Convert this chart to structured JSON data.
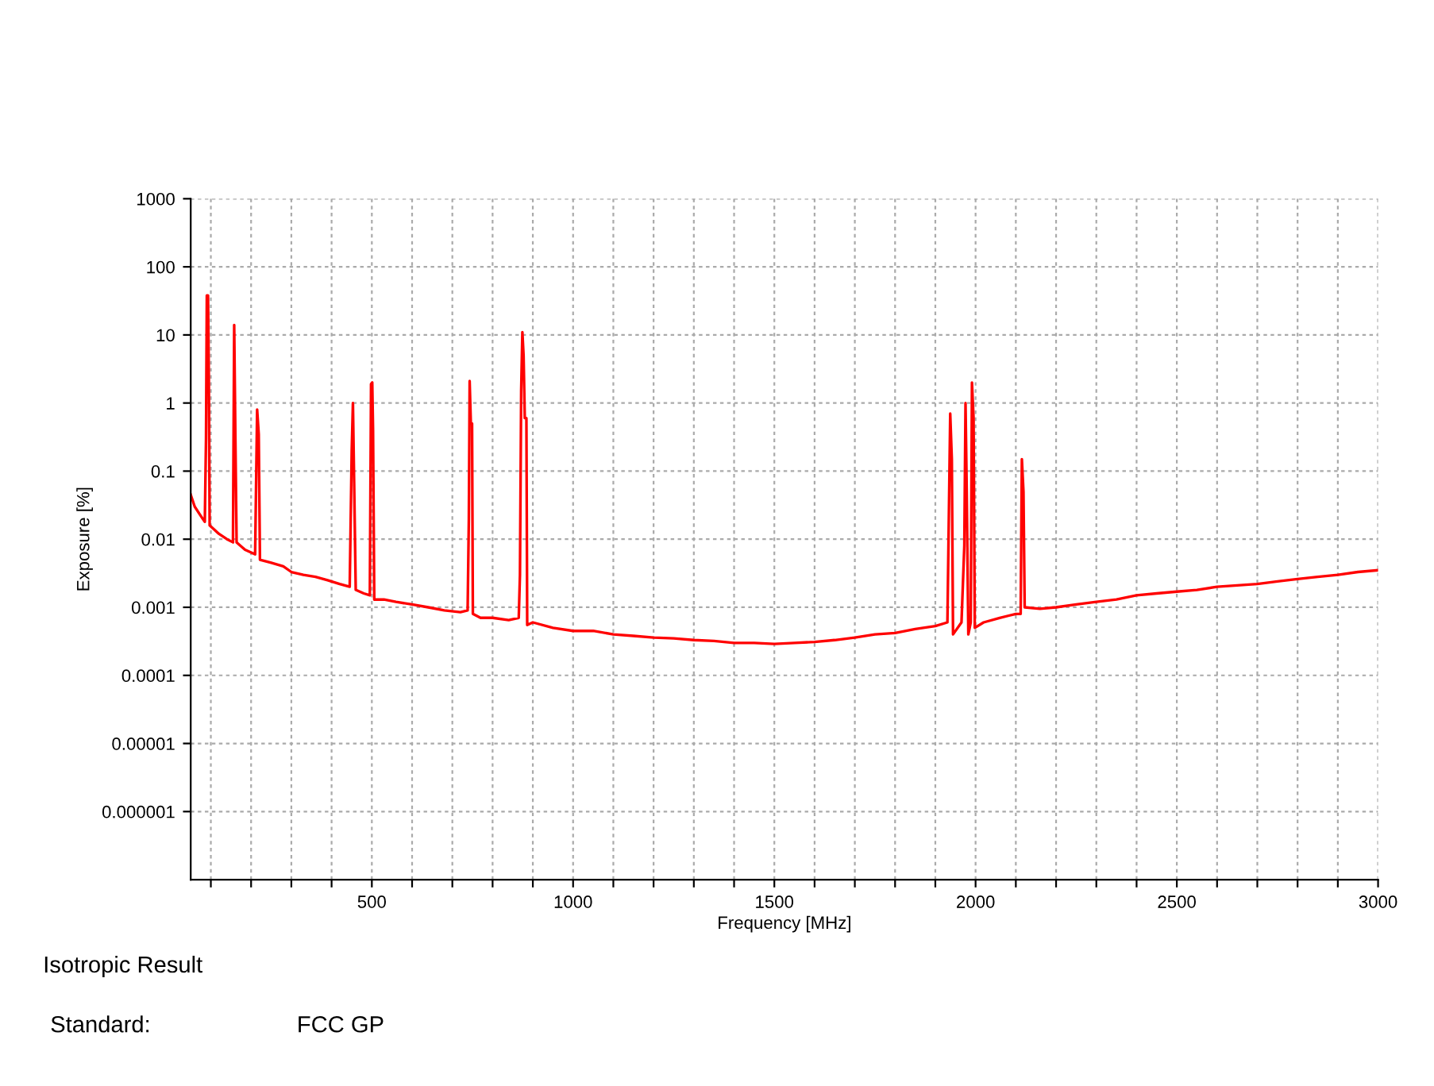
{
  "chart_data": {
    "type": "line",
    "xlabel": "Frequency [MHz]",
    "ylabel": "Exposure [%]",
    "annotations": [
      "Isotropic Result",
      "Standard:",
      "FCC GP"
    ],
    "log": "y",
    "grid": true,
    "marker": "none",
    "line_style": "solid",
    "xlim": [
      50,
      3000
    ],
    "ylim": [
      1e-07,
      1000
    ],
    "xticks": [
      {
        "value": 100,
        "label": null
      },
      {
        "value": 200,
        "label": null
      },
      {
        "value": 300,
        "label": null
      },
      {
        "value": 400,
        "label": null
      },
      500,
      {
        "value": 600,
        "label": null
      },
      {
        "value": 700,
        "label": null
      },
      {
        "value": 800,
        "label": null
      },
      {
        "value": 900,
        "label": null
      },
      1000,
      {
        "value": 1100,
        "label": null
      },
      {
        "value": 1200,
        "label": null
      },
      {
        "value": 1300,
        "label": null
      },
      {
        "value": 1400,
        "label": null
      },
      1500,
      {
        "value": 1600,
        "label": null
      },
      {
        "value": 1700,
        "label": null
      },
      {
        "value": 1800,
        "label": null
      },
      {
        "value": 1900,
        "label": null
      },
      2000,
      {
        "value": 2100,
        "label": null
      },
      {
        "value": 2200,
        "label": null
      },
      {
        "value": 2300,
        "label": null
      },
      {
        "value": 2400,
        "label": null
      },
      2500,
      {
        "value": 2600,
        "label": null
      },
      {
        "value": 2700,
        "label": null
      },
      {
        "value": 2800,
        "label": null
      },
      {
        "value": 2900,
        "label": null
      },
      3000
    ],
    "yticks": [
      {
        "value": 1e-06,
        "label": "0.000001"
      },
      {
        "value": 1e-05,
        "label": "0.00001"
      },
      {
        "value": 0.0001,
        "label": "0.0001"
      },
      {
        "value": 0.001,
        "label": "0.001"
      },
      {
        "value": 0.01,
        "label": "0.01"
      },
      {
        "value": 0.1,
        "label": "0.1"
      },
      {
        "value": 1,
        "label": "1"
      },
      {
        "value": 10,
        "label": "10"
      },
      {
        "value": 100,
        "label": "100"
      },
      {
        "value": 1000,
        "label": "1000"
      }
    ],
    "series": [
      {
        "color": "#ff0000",
        "x": [
          50,
          60,
          75,
          85,
          88,
          90,
          93,
          95,
          97,
          120,
          140,
          155,
          158,
          161,
          164,
          185,
          210,
          215,
          219,
          222,
          250,
          280,
          300,
          330,
          360,
          390,
          420,
          445,
          450,
          453,
          456,
          460,
          480,
          495,
          498,
          501,
          503,
          506,
          530,
          560,
          600,
          640,
          680,
          720,
          738,
          741,
          743,
          746,
          749,
          751,
          770,
          800,
          840,
          865,
          868,
          871,
          874,
          877,
          880,
          884,
          886,
          900,
          950,
          1000,
          1050,
          1100,
          1150,
          1200,
          1250,
          1300,
          1350,
          1400,
          1450,
          1500,
          1550,
          1600,
          1650,
          1700,
          1750,
          1800,
          1850,
          1900,
          1930,
          1937,
          1941,
          1944,
          1965,
          1972,
          1975,
          1978,
          1982,
          1988,
          1991,
          1995,
          1998,
          2020,
          2060,
          2100,
          2112,
          2115,
          2119,
          2122,
          2160,
          2200,
          2250,
          2300,
          2350,
          2400,
          2450,
          2500,
          2550,
          2600,
          2650,
          2700,
          2750,
          2800,
          2850,
          2900,
          2950,
          3000
        ],
        "values": [
          0.045,
          0.03,
          0.022,
          0.018,
          0.3,
          38,
          38,
          2.5,
          0.016,
          0.012,
          0.01,
          0.009,
          14,
          0.3,
          0.009,
          0.007,
          0.006,
          0.8,
          0.35,
          0.005,
          0.0045,
          0.004,
          0.0033,
          0.003,
          0.0028,
          0.0025,
          0.0022,
          0.002,
          0.2,
          1.0,
          0.07,
          0.0018,
          0.0016,
          0.0015,
          1.9,
          2.0,
          0.4,
          0.0013,
          0.0013,
          0.0012,
          0.0011,
          0.001,
          0.0009,
          0.00085,
          0.0009,
          0.02,
          2.1,
          0.5,
          0.5,
          0.0008,
          0.0007,
          0.0007,
          0.00065,
          0.0007,
          0.003,
          1.5,
          11,
          5,
          0.6,
          0.6,
          0.00055,
          0.0006,
          0.0005,
          0.00045,
          0.00045,
          0.0004,
          0.00038,
          0.00036,
          0.00035,
          0.00033,
          0.00032,
          0.0003,
          0.0003,
          0.00029,
          0.0003,
          0.00031,
          0.00033,
          0.00036,
          0.0004,
          0.00042,
          0.00048,
          0.00053,
          0.0006,
          0.7,
          0.15,
          0.0004,
          0.0006,
          0.008,
          1.0,
          0.05,
          0.0004,
          0.0006,
          2.0,
          0.6,
          0.0005,
          0.0006,
          0.0007,
          0.0008,
          0.0008,
          0.15,
          0.05,
          0.001,
          0.00095,
          0.001,
          0.0011,
          0.0012,
          0.0013,
          0.0015,
          0.0016,
          0.0017,
          0.0018,
          0.002,
          0.0021,
          0.0022,
          0.0024,
          0.0026,
          0.0028,
          0.003,
          0.0033,
          0.0035
        ]
      }
    ]
  }
}
